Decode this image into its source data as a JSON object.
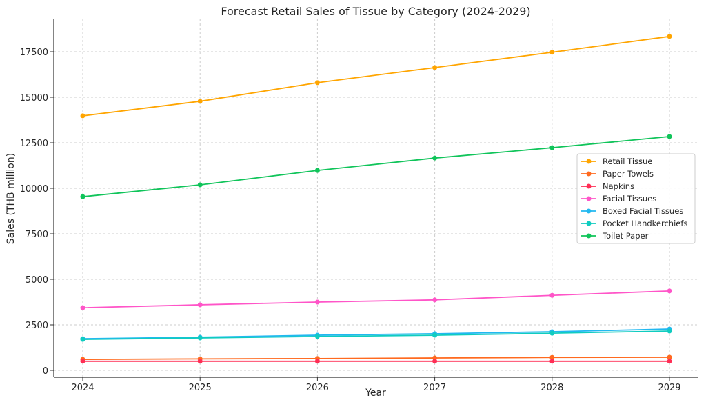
{
  "chart_data": {
    "type": "line",
    "title": "Forecast Retail Sales of Tissue by Category (2024-2029)",
    "xlabel": "Year",
    "ylabel": "Sales (THB million)",
    "x": [
      2024,
      2025,
      2026,
      2027,
      2028,
      2029
    ],
    "xticks": [
      "2024",
      "2025",
      "2026",
      "2027",
      "2028",
      "2029"
    ],
    "yticks": [
      "0",
      "2500",
      "5000",
      "7500",
      "10000",
      "12500",
      "15000",
      "17500"
    ],
    "ytick_values": [
      0,
      2500,
      5000,
      7500,
      10000,
      12500,
      15000,
      17500
    ],
    "xlim": [
      2023.5,
      2029.5
    ],
    "ylim": [
      -400,
      19200
    ],
    "grid": true,
    "legend_position": "center-right",
    "series": [
      {
        "name": "Retail Tissue",
        "color": "#FFA500",
        "values": [
          13980,
          14780,
          15800,
          16630,
          17470,
          18340
        ]
      },
      {
        "name": "Paper Towels",
        "color": "#FF6A1F",
        "values": [
          600,
          630,
          650,
          680,
          710,
          720
        ]
      },
      {
        "name": "Napkins",
        "color": "#FF2E55",
        "values": [
          500,
          500,
          500,
          500,
          500,
          500
        ]
      },
      {
        "name": "Facial Tissues",
        "color": "#FF55C8",
        "values": [
          3440,
          3600,
          3750,
          3870,
          4120,
          4360
        ]
      },
      {
        "name": "Boxed Facial Tissues",
        "color": "#22B8F0",
        "values": [
          1740,
          1820,
          1930,
          2010,
          2120,
          2270
        ]
      },
      {
        "name": "Pocket Handkerchiefs",
        "color": "#10CCC0",
        "values": [
          1700,
          1780,
          1860,
          1930,
          2040,
          2160
        ]
      },
      {
        "name": "Toilet Paper",
        "color": "#10C45A",
        "values": [
          9540,
          10190,
          10980,
          11660,
          12230,
          12840
        ]
      }
    ]
  }
}
